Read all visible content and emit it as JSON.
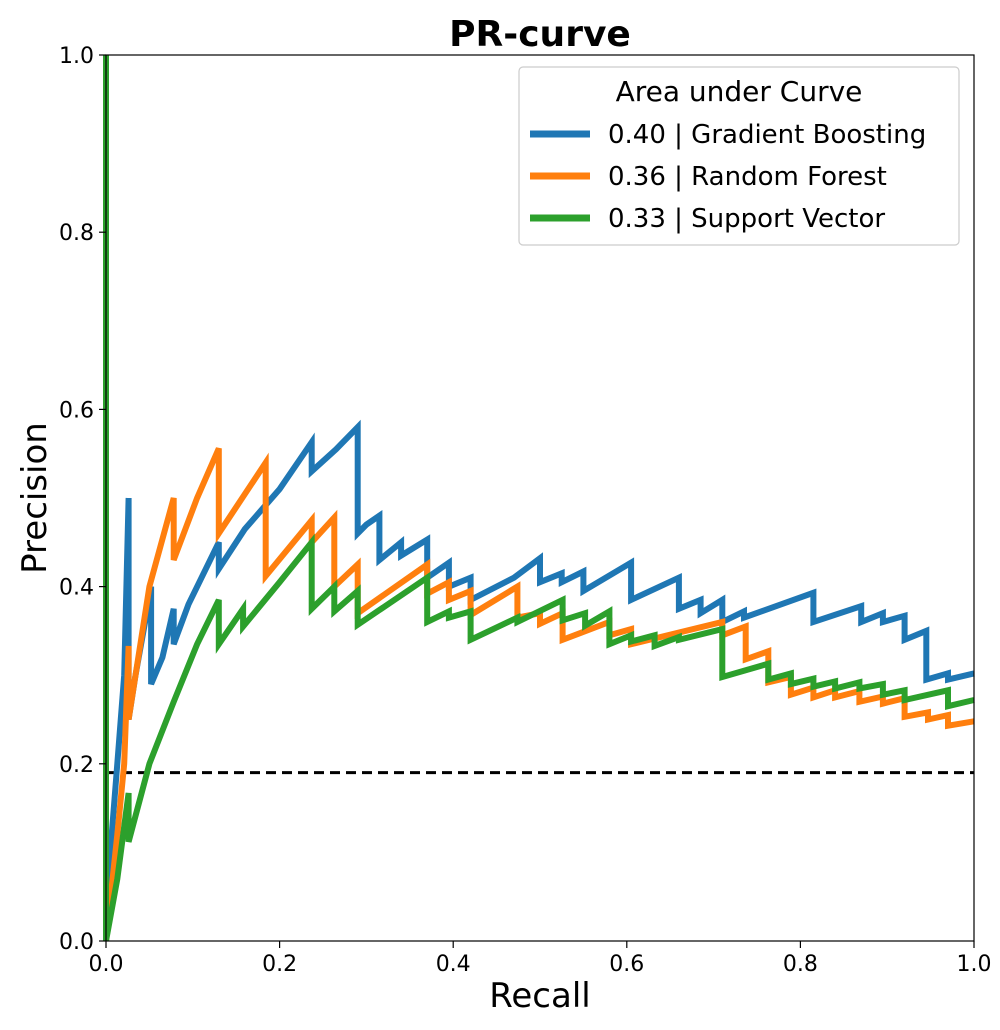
{
  "chart_data": {
    "type": "line",
    "title": "PR-curve",
    "xlabel": "Recall",
    "ylabel": "Precision",
    "xlim": [
      0.0,
      1.0
    ],
    "ylim": [
      0.0,
      1.0
    ],
    "xticks": [
      0.0,
      0.2,
      0.4,
      0.6,
      0.8,
      1.0
    ],
    "yticks": [
      0.0,
      0.2,
      0.4,
      0.6,
      0.8,
      1.0
    ],
    "xtick_labels": [
      "0.0",
      "0.2",
      "0.4",
      "0.6",
      "0.8",
      "1.0"
    ],
    "ytick_labels": [
      "0.0",
      "0.2",
      "0.4",
      "0.6",
      "0.8",
      "1.0"
    ],
    "grid": false,
    "legend": {
      "title": "Area under Curve",
      "position": "top-right"
    },
    "baseline": {
      "value": 0.19,
      "style": "dashed",
      "color": "#000000"
    },
    "series": [
      {
        "name": "Gradient Boosting",
        "label": "0.40 | Gradient Boosting",
        "auc": 0.4,
        "color": "#1f77b4",
        "points": [
          [
            0.0,
            0.0
          ],
          [
            0.005,
            0.1
          ],
          [
            0.013,
            0.2
          ],
          [
            0.021,
            0.3
          ],
          [
            0.026,
            0.5
          ],
          [
            0.026,
            0.25
          ],
          [
            0.034,
            0.3
          ],
          [
            0.045,
            0.36
          ],
          [
            0.052,
            0.4
          ],
          [
            0.052,
            0.29
          ],
          [
            0.065,
            0.32
          ],
          [
            0.078,
            0.375
          ],
          [
            0.078,
            0.335
          ],
          [
            0.095,
            0.38
          ],
          [
            0.115,
            0.42
          ],
          [
            0.13,
            0.45
          ],
          [
            0.13,
            0.42
          ],
          [
            0.16,
            0.465
          ],
          [
            0.2,
            0.51
          ],
          [
            0.237,
            0.563
          ],
          [
            0.237,
            0.53
          ],
          [
            0.265,
            0.555
          ],
          [
            0.29,
            0.58
          ],
          [
            0.29,
            0.46
          ],
          [
            0.3,
            0.47
          ],
          [
            0.315,
            0.48
          ],
          [
            0.315,
            0.43
          ],
          [
            0.34,
            0.45
          ],
          [
            0.34,
            0.435
          ],
          [
            0.37,
            0.453
          ],
          [
            0.37,
            0.41
          ],
          [
            0.395,
            0.427
          ],
          [
            0.395,
            0.4
          ],
          [
            0.42,
            0.41
          ],
          [
            0.42,
            0.385
          ],
          [
            0.47,
            0.41
          ],
          [
            0.5,
            0.432
          ],
          [
            0.5,
            0.405
          ],
          [
            0.525,
            0.415
          ],
          [
            0.525,
            0.405
          ],
          [
            0.55,
            0.417
          ],
          [
            0.55,
            0.395
          ],
          [
            0.605,
            0.427
          ],
          [
            0.605,
            0.385
          ],
          [
            0.66,
            0.41
          ],
          [
            0.66,
            0.375
          ],
          [
            0.685,
            0.385
          ],
          [
            0.685,
            0.37
          ],
          [
            0.71,
            0.385
          ],
          [
            0.71,
            0.36
          ],
          [
            0.735,
            0.372
          ],
          [
            0.735,
            0.365
          ],
          [
            0.815,
            0.393
          ],
          [
            0.815,
            0.36
          ],
          [
            0.87,
            0.378
          ],
          [
            0.87,
            0.36
          ],
          [
            0.895,
            0.37
          ],
          [
            0.895,
            0.36
          ],
          [
            0.92,
            0.367
          ],
          [
            0.92,
            0.34
          ],
          [
            0.945,
            0.35
          ],
          [
            0.945,
            0.295
          ],
          [
            0.97,
            0.302
          ],
          [
            0.97,
            0.295
          ],
          [
            1.0,
            0.302
          ]
        ]
      },
      {
        "name": "Random Forest",
        "label": "0.36 | Random Forest",
        "auc": 0.36,
        "color": "#ff7f0e",
        "points": [
          [
            0.0,
            0.0
          ],
          [
            0.013,
            0.12
          ],
          [
            0.021,
            0.2
          ],
          [
            0.026,
            0.333
          ],
          [
            0.026,
            0.25
          ],
          [
            0.05,
            0.4
          ],
          [
            0.078,
            0.5
          ],
          [
            0.078,
            0.43
          ],
          [
            0.105,
            0.5
          ],
          [
            0.13,
            0.556
          ],
          [
            0.13,
            0.46
          ],
          [
            0.184,
            0.54
          ],
          [
            0.184,
            0.412
          ],
          [
            0.237,
            0.475
          ],
          [
            0.237,
            0.45
          ],
          [
            0.263,
            0.478
          ],
          [
            0.263,
            0.4
          ],
          [
            0.29,
            0.425
          ],
          [
            0.29,
            0.37
          ],
          [
            0.37,
            0.425
          ],
          [
            0.37,
            0.392
          ],
          [
            0.395,
            0.405
          ],
          [
            0.395,
            0.385
          ],
          [
            0.42,
            0.395
          ],
          [
            0.42,
            0.368
          ],
          [
            0.474,
            0.4
          ],
          [
            0.474,
            0.365
          ],
          [
            0.5,
            0.37
          ],
          [
            0.5,
            0.358
          ],
          [
            0.526,
            0.37
          ],
          [
            0.526,
            0.34
          ],
          [
            0.58,
            0.36
          ],
          [
            0.58,
            0.345
          ],
          [
            0.605,
            0.352
          ],
          [
            0.605,
            0.335
          ],
          [
            0.71,
            0.36
          ],
          [
            0.71,
            0.345
          ],
          [
            0.737,
            0.355
          ],
          [
            0.737,
            0.318
          ],
          [
            0.763,
            0.327
          ],
          [
            0.763,
            0.292
          ],
          [
            0.789,
            0.298
          ],
          [
            0.789,
            0.278
          ],
          [
            0.815,
            0.286
          ],
          [
            0.815,
            0.275
          ],
          [
            0.84,
            0.283
          ],
          [
            0.84,
            0.275
          ],
          [
            0.868,
            0.282
          ],
          [
            0.868,
            0.27
          ],
          [
            0.895,
            0.276
          ],
          [
            0.895,
            0.268
          ],
          [
            0.92,
            0.274
          ],
          [
            0.92,
            0.253
          ],
          [
            0.947,
            0.258
          ],
          [
            0.947,
            0.25
          ],
          [
            0.97,
            0.255
          ],
          [
            0.97,
            0.243
          ],
          [
            1.0,
            0.248
          ]
        ]
      },
      {
        "name": "Support Vector",
        "label": "0.33 | Support Vector",
        "auc": 0.33,
        "color": "#2ca02c",
        "points": [
          [
            0.0,
            1.0
          ],
          [
            0.0,
            0.0
          ],
          [
            0.013,
            0.07
          ],
          [
            0.026,
            0.167
          ],
          [
            0.026,
            0.112
          ],
          [
            0.05,
            0.2
          ],
          [
            0.078,
            0.27
          ],
          [
            0.105,
            0.335
          ],
          [
            0.13,
            0.385
          ],
          [
            0.13,
            0.335
          ],
          [
            0.158,
            0.375
          ],
          [
            0.158,
            0.355
          ],
          [
            0.2,
            0.405
          ],
          [
            0.237,
            0.45
          ],
          [
            0.237,
            0.375
          ],
          [
            0.263,
            0.4
          ],
          [
            0.263,
            0.372
          ],
          [
            0.29,
            0.395
          ],
          [
            0.29,
            0.357
          ],
          [
            0.37,
            0.41
          ],
          [
            0.37,
            0.36
          ],
          [
            0.395,
            0.372
          ],
          [
            0.395,
            0.365
          ],
          [
            0.42,
            0.372
          ],
          [
            0.42,
            0.34
          ],
          [
            0.474,
            0.365
          ],
          [
            0.474,
            0.36
          ],
          [
            0.526,
            0.385
          ],
          [
            0.526,
            0.362
          ],
          [
            0.552,
            0.37
          ],
          [
            0.552,
            0.356
          ],
          [
            0.58,
            0.372
          ],
          [
            0.58,
            0.335
          ],
          [
            0.605,
            0.345
          ],
          [
            0.605,
            0.338
          ],
          [
            0.632,
            0.345
          ],
          [
            0.632,
            0.333
          ],
          [
            0.66,
            0.343
          ],
          [
            0.66,
            0.34
          ],
          [
            0.71,
            0.352
          ],
          [
            0.71,
            0.298
          ],
          [
            0.763,
            0.313
          ],
          [
            0.763,
            0.295
          ],
          [
            0.789,
            0.302
          ],
          [
            0.789,
            0.29
          ],
          [
            0.815,
            0.296
          ],
          [
            0.815,
            0.287
          ],
          [
            0.84,
            0.293
          ],
          [
            0.84,
            0.285
          ],
          [
            0.868,
            0.292
          ],
          [
            0.868,
            0.285
          ],
          [
            0.895,
            0.29
          ],
          [
            0.895,
            0.278
          ],
          [
            0.92,
            0.283
          ],
          [
            0.92,
            0.272
          ],
          [
            0.97,
            0.283
          ],
          [
            0.97,
            0.265
          ],
          [
            1.0,
            0.272
          ]
        ]
      }
    ]
  }
}
